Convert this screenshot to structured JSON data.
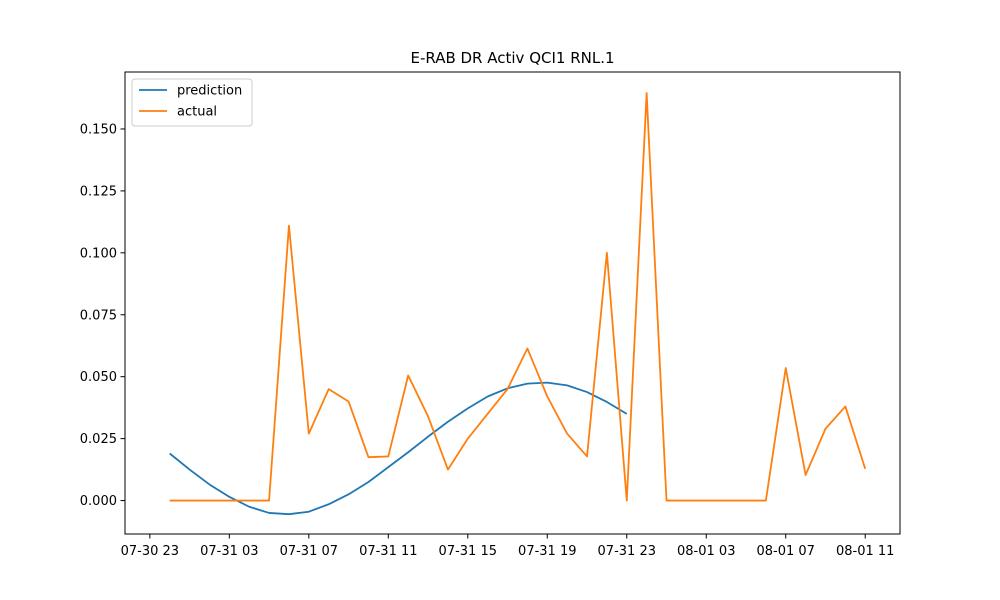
{
  "chart_data": {
    "type": "line",
    "title": "E-RAB DR Activ QCI1 RNL.1",
    "xlabel": "",
    "ylabel": "",
    "x_unit": "hour",
    "x_start": "2023-07-30 23:00",
    "xlim": [
      "2023-07-30 21:45",
      "2023-08-01 12:45"
    ],
    "ylim": [
      -0.0135,
      0.173
    ],
    "x_tick_labels": [
      "07-30 23",
      "07-31 03",
      "07-31 07",
      "07-31 11",
      "07-31 15",
      "07-31 19",
      "07-31 23",
      "08-01 03",
      "08-01 07",
      "08-01 11"
    ],
    "y_ticks": [
      0.0,
      0.025,
      0.05,
      0.075,
      0.1,
      0.125,
      0.15
    ],
    "y_tick_labels": [
      "0.000",
      "0.025",
      "0.050",
      "0.075",
      "0.100",
      "0.125",
      "0.150"
    ],
    "grid": false,
    "legend_position": "top-left",
    "series": [
      {
        "name": "prediction",
        "color": "#1f77b4",
        "x": [
          "2023-07-31 00:00",
          "2023-07-31 01:00",
          "2023-07-31 02:00",
          "2023-07-31 03:00",
          "2023-07-31 04:00",
          "2023-07-31 05:00",
          "2023-07-31 06:00",
          "2023-07-31 07:00",
          "2023-07-31 08:00",
          "2023-07-31 09:00",
          "2023-07-31 10:00",
          "2023-07-31 11:00",
          "2023-07-31 12:00",
          "2023-07-31 13:00",
          "2023-07-31 14:00",
          "2023-07-31 15:00",
          "2023-07-31 16:00",
          "2023-07-31 17:00",
          "2023-07-31 18:00",
          "2023-07-31 19:00",
          "2023-07-31 20:00",
          "2023-07-31 21:00",
          "2023-07-31 22:00",
          "2023-07-31 23:00"
        ],
        "y": [
          0.019,
          0.0125,
          0.0065,
          0.0015,
          -0.0025,
          -0.005,
          -0.0055,
          -0.0045,
          -0.0015,
          0.0025,
          0.0075,
          0.0135,
          0.0195,
          0.0258,
          0.0318,
          0.0372,
          0.042,
          0.0453,
          0.0472,
          0.0476,
          0.0465,
          0.0438,
          0.0398,
          0.035
        ]
      },
      {
        "name": "actual",
        "color": "#ff7f0e",
        "x": [
          "2023-07-31 00:00",
          "2023-07-31 01:00",
          "2023-07-31 02:00",
          "2023-07-31 03:00",
          "2023-07-31 04:00",
          "2023-07-31 05:00",
          "2023-07-31 06:00",
          "2023-07-31 07:00",
          "2023-07-31 08:00",
          "2023-07-31 09:00",
          "2023-07-31 10:00",
          "2023-07-31 11:00",
          "2023-07-31 12:00",
          "2023-07-31 13:00",
          "2023-07-31 14:00",
          "2023-07-31 15:00",
          "2023-07-31 16:00",
          "2023-07-31 17:00",
          "2023-07-31 18:00",
          "2023-07-31 19:00",
          "2023-07-31 20:00",
          "2023-07-31 21:00",
          "2023-07-31 22:00",
          "2023-07-31 23:00",
          "2023-08-01 00:00",
          "2023-08-01 01:00",
          "2023-08-01 02:00",
          "2023-08-01 03:00",
          "2023-08-01 04:00",
          "2023-08-01 05:00",
          "2023-08-01 06:00",
          "2023-08-01 07:00",
          "2023-08-01 08:00",
          "2023-08-01 09:00",
          "2023-08-01 10:00",
          "2023-08-01 11:00"
        ],
        "y": [
          0.0,
          0.0,
          0.0,
          0.0,
          0.0,
          0.0,
          0.111,
          0.027,
          0.045,
          0.04,
          0.0175,
          0.0178,
          0.0505,
          0.034,
          0.0125,
          0.025,
          0.035,
          0.045,
          0.0614,
          0.042,
          0.027,
          0.0178,
          0.1,
          0.0,
          0.1645,
          0.0,
          0.0,
          0.0,
          0.0,
          0.0,
          0.0,
          0.0535,
          0.0103,
          0.029,
          0.038,
          0.0128
        ]
      }
    ]
  }
}
